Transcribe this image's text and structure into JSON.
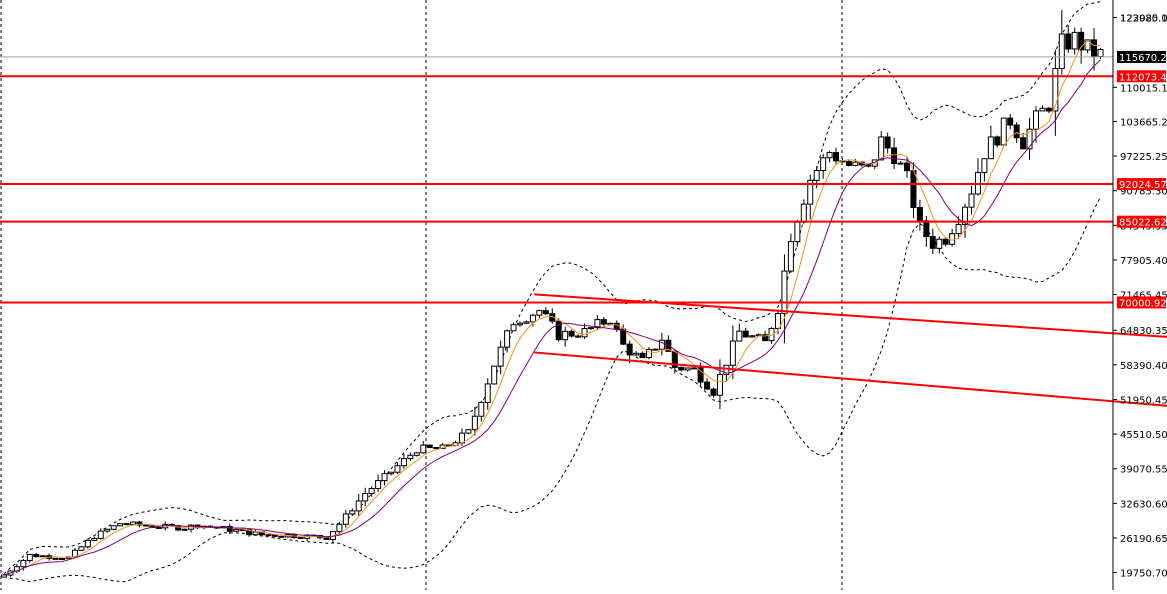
{
  "chart_data": {
    "type": "candlestick",
    "title": "",
    "xlabel": "",
    "ylabel": "",
    "ylim": [
      16510,
      126260
    ],
    "grid": false,
    "y_ticks": [
      {
        "value": 123020.15,
        "label": "123020.15"
      },
      {
        "value": 122985.05,
        "label": "122985.05"
      },
      {
        "value": 110015.15,
        "label": "110015.15"
      },
      {
        "value": 103665.2,
        "label": "103665.20"
      },
      {
        "value": 97225.25,
        "label": "97225.25"
      },
      {
        "value": 90785.3,
        "label": "90785.30"
      },
      {
        "value": 84345.35,
        "label": "84345.35"
      },
      {
        "value": 77905.4,
        "label": "77905.40"
      },
      {
        "value": 71465.45,
        "label": "71465.45"
      },
      {
        "value": 64830.35,
        "label": "64830.35"
      },
      {
        "value": 58390.4,
        "label": "58390.40"
      },
      {
        "value": 51950.45,
        "label": "51950.45"
      },
      {
        "value": 45510.5,
        "label": "45510.50"
      },
      {
        "value": 39070.55,
        "label": "39070.55"
      },
      {
        "value": 32630.6,
        "label": "32630.60"
      },
      {
        "value": 26190.65,
        "label": "26190.65"
      },
      {
        "value": 19750.7,
        "label": "19750.70"
      }
    ],
    "horizontal_levels": [
      {
        "label": "112073.43",
        "value": 112073.43,
        "color": "#ff0000"
      },
      {
        "label": "92024.57",
        "value": 92024.57,
        "color": "#ff0000"
      },
      {
        "label": "85022.62",
        "value": 85022.62,
        "color": "#ff0000"
      },
      {
        "label": "70000.92",
        "value": 70000.92,
        "color": "#ff0000"
      }
    ],
    "current_price": {
      "label": "115670.25",
      "value": 115670.25,
      "line_color": "#9aa4aa",
      "box_color": "#000000"
    },
    "channel_lines": [
      {
        "from": [
          2,
          71500
        ],
        "to": [
          32,
          62800
        ],
        "color": "#ff0000"
      },
      {
        "from": [
          2,
          60700
        ],
        "to": [
          30,
          50500
        ],
        "color": "#ff0000"
      }
    ],
    "vertical_separators": [
      0,
      25,
      51
    ],
    "series": [
      {
        "name": "",
        "color": "#f7931a",
        "style": "moving-average-fast"
      },
      {
        "name": "",
        "color": "#800080",
        "style": "moving-average-slow"
      },
      {
        "name": "",
        "color": "#000000",
        "style": "bollinger-upper"
      },
      {
        "name": "",
        "color": "#000000",
        "style": "bollinger-lower"
      }
    ],
    "colors": {
      "up_body": "#ffffff",
      "down_body": "#000000",
      "candle_outline": "#000000",
      "level_text": "#ffffff"
    }
  }
}
